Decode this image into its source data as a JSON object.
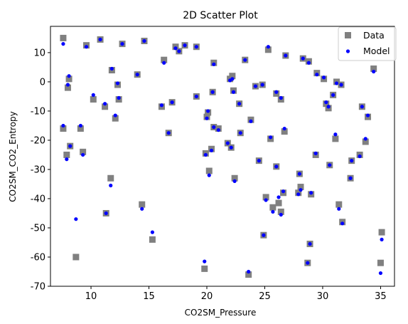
{
  "chart_data": {
    "type": "scatter",
    "title": "2D Scatter Plot",
    "xlabel": "CO2SM_Pressure",
    "ylabel": "CO2SM_CO2_Entropy",
    "xlim": [
      6.5,
      36.2
    ],
    "ylim": [
      -70,
      19
    ],
    "xticks": [
      10,
      15,
      20,
      25,
      30,
      35
    ],
    "yticks": [
      -70,
      -60,
      -50,
      -40,
      -30,
      -20,
      -10,
      0,
      10
    ],
    "grid": false,
    "legend_position": "top-right",
    "series": [
      {
        "name": "Data",
        "marker": "square",
        "color": "#808080",
        "points": [
          [
            7.6,
            15
          ],
          [
            7.6,
            -16
          ],
          [
            7.9,
            -25
          ],
          [
            8.0,
            -2
          ],
          [
            8.1,
            1
          ],
          [
            8.2,
            -22
          ],
          [
            8.7,
            -60
          ],
          [
            9.1,
            -16
          ],
          [
            9.3,
            -24
          ],
          [
            9.6,
            12.5
          ],
          [
            10.2,
            -6
          ],
          [
            10.8,
            14.5
          ],
          [
            11.2,
            -8.5
          ],
          [
            11.3,
            -45
          ],
          [
            11.7,
            -33
          ],
          [
            11.8,
            4
          ],
          [
            12.1,
            -12.5
          ],
          [
            12.3,
            -1
          ],
          [
            12.4,
            -6
          ],
          [
            12.7,
            13
          ],
          [
            14.0,
            2.5
          ],
          [
            14.4,
            -42
          ],
          [
            14.6,
            14
          ],
          [
            15.3,
            -54
          ],
          [
            16.1,
            -8.5
          ],
          [
            16.3,
            7.5
          ],
          [
            16.7,
            -17.5
          ],
          [
            17.0,
            -7
          ],
          [
            17.3,
            12
          ],
          [
            17.6,
            10.5
          ],
          [
            18.1,
            12.5
          ],
          [
            19.1,
            12
          ],
          [
            19.1,
            -5
          ],
          [
            19.8,
            -64
          ],
          [
            19.9,
            -24.5
          ],
          [
            20.0,
            -12
          ],
          [
            20.1,
            -10.5
          ],
          [
            20.2,
            -30.5
          ],
          [
            20.4,
            -23
          ],
          [
            20.5,
            -3.5
          ],
          [
            20.6,
            6.5
          ],
          [
            20.6,
            -15.5
          ],
          [
            21.0,
            -16
          ],
          [
            21.8,
            -21
          ],
          [
            22.0,
            1
          ],
          [
            22.1,
            -22.5
          ],
          [
            22.2,
            2
          ],
          [
            22.3,
            -3
          ],
          [
            22.4,
            -33
          ],
          [
            22.8,
            -7.5
          ],
          [
            22.9,
            -17.5
          ],
          [
            23.3,
            7.5
          ],
          [
            23.6,
            -66
          ],
          [
            23.8,
            -13
          ],
          [
            24.2,
            -1.5
          ],
          [
            24.5,
            -27
          ],
          [
            24.8,
            -1
          ],
          [
            24.9,
            -52.5
          ],
          [
            25.1,
            -39.5
          ],
          [
            25.3,
            11
          ],
          [
            25.5,
            -19.5
          ],
          [
            25.7,
            -43
          ],
          [
            26.0,
            -4
          ],
          [
            26.0,
            -29
          ],
          [
            26.2,
            -41.5
          ],
          [
            26.4,
            -44.5
          ],
          [
            26.4,
            -6
          ],
          [
            26.6,
            -38
          ],
          [
            26.7,
            -17
          ],
          [
            26.8,
            9
          ],
          [
            27.9,
            -38
          ],
          [
            28.0,
            -31.5
          ],
          [
            28.1,
            -36
          ],
          [
            28.3,
            8
          ],
          [
            28.7,
            -62
          ],
          [
            28.8,
            7
          ],
          [
            28.9,
            -55.5
          ],
          [
            29.0,
            -38.5
          ],
          [
            29.4,
            -25
          ],
          [
            29.5,
            3
          ],
          [
            30.1,
            1
          ],
          [
            30.3,
            -7.5
          ],
          [
            30.5,
            -9
          ],
          [
            30.6,
            -28.5
          ],
          [
            30.9,
            -4.5
          ],
          [
            31.1,
            -19.5
          ],
          [
            31.2,
            0
          ],
          [
            31.4,
            -42
          ],
          [
            31.6,
            -1
          ],
          [
            31.7,
            -48
          ],
          [
            32.4,
            -33
          ],
          [
            32.5,
            -27
          ],
          [
            33.2,
            -25
          ],
          [
            33.4,
            -8.5
          ],
          [
            33.7,
            -20.5
          ],
          [
            33.9,
            -12
          ],
          [
            34.4,
            4.5
          ],
          [
            35.0,
            -62
          ],
          [
            35.1,
            -51.5
          ]
        ]
      },
      {
        "name": "Model",
        "marker": "circle",
        "color": "#0000ff",
        "points": [
          [
            7.6,
            13
          ],
          [
            7.6,
            -15
          ],
          [
            7.9,
            -26.5
          ],
          [
            8.0,
            -1
          ],
          [
            8.1,
            2
          ],
          [
            8.2,
            -22
          ],
          [
            8.7,
            -47
          ],
          [
            9.1,
            -15
          ],
          [
            9.3,
            -25
          ],
          [
            9.6,
            12
          ],
          [
            10.2,
            -4.5
          ],
          [
            10.8,
            14.5
          ],
          [
            11.2,
            -7.5
          ],
          [
            11.3,
            -45
          ],
          [
            11.7,
            -35.5
          ],
          [
            11.8,
            4.5
          ],
          [
            12.1,
            -11.5
          ],
          [
            12.3,
            -0.5
          ],
          [
            12.4,
            -5.5
          ],
          [
            12.7,
            13
          ],
          [
            14.0,
            2.5
          ],
          [
            14.4,
            -43.5
          ],
          [
            14.6,
            14
          ],
          [
            15.3,
            -51.5
          ],
          [
            16.1,
            -8
          ],
          [
            16.3,
            6.5
          ],
          [
            16.7,
            -17.5
          ],
          [
            17.0,
            -7
          ],
          [
            17.3,
            11.5
          ],
          [
            17.6,
            10.5
          ],
          [
            18.1,
            12.5
          ],
          [
            19.1,
            12
          ],
          [
            19.1,
            -5
          ],
          [
            19.8,
            -61.5
          ],
          [
            19.9,
            -25
          ],
          [
            20.0,
            -12.5
          ],
          [
            20.1,
            -10
          ],
          [
            20.2,
            -32
          ],
          [
            20.4,
            -23.5
          ],
          [
            20.5,
            -3.5
          ],
          [
            20.6,
            6
          ],
          [
            20.6,
            -15.5
          ],
          [
            21.0,
            -16.5
          ],
          [
            21.8,
            -21
          ],
          [
            22.0,
            0.5
          ],
          [
            22.1,
            -22.5
          ],
          [
            22.2,
            1
          ],
          [
            22.3,
            -3.5
          ],
          [
            22.4,
            -34
          ],
          [
            22.8,
            -7.5
          ],
          [
            22.9,
            -17.5
          ],
          [
            23.3,
            7.5
          ],
          [
            23.6,
            -65
          ],
          [
            23.8,
            -13.5
          ],
          [
            24.2,
            -1.5
          ],
          [
            24.5,
            -27
          ],
          [
            24.8,
            -1
          ],
          [
            24.9,
            -52.5
          ],
          [
            25.1,
            -40.5
          ],
          [
            25.3,
            12
          ],
          [
            25.5,
            -19
          ],
          [
            25.7,
            -44.5
          ],
          [
            26.0,
            -3.5
          ],
          [
            26.0,
            -29
          ],
          [
            26.2,
            -39.5
          ],
          [
            26.4,
            -45.5
          ],
          [
            26.4,
            -5.5
          ],
          [
            26.6,
            -37.5
          ],
          [
            26.7,
            -16
          ],
          [
            26.8,
            9
          ],
          [
            27.9,
            -38.5
          ],
          [
            28.0,
            -31.5
          ],
          [
            28.1,
            -37
          ],
          [
            28.3,
            8
          ],
          [
            28.7,
            -62
          ],
          [
            28.8,
            6.5
          ],
          [
            28.9,
            -55.5
          ],
          [
            29.0,
            -38
          ],
          [
            29.4,
            -24.5
          ],
          [
            29.5,
            2.5
          ],
          [
            30.1,
            1.5
          ],
          [
            30.3,
            -7
          ],
          [
            30.5,
            -8.5
          ],
          [
            30.6,
            -28.5
          ],
          [
            30.9,
            -4.5
          ],
          [
            31.1,
            -18
          ],
          [
            31.2,
            -0.5
          ],
          [
            31.4,
            -43.5
          ],
          [
            31.6,
            -1
          ],
          [
            31.7,
            -48.5
          ],
          [
            32.4,
            -33
          ],
          [
            32.5,
            -27
          ],
          [
            33.2,
            -25.5
          ],
          [
            33.4,
            -8.5
          ],
          [
            33.7,
            -19.5
          ],
          [
            33.9,
            -11.5
          ],
          [
            34.4,
            3.5
          ],
          [
            35.0,
            -65.5
          ],
          [
            35.1,
            -54
          ]
        ]
      }
    ]
  }
}
